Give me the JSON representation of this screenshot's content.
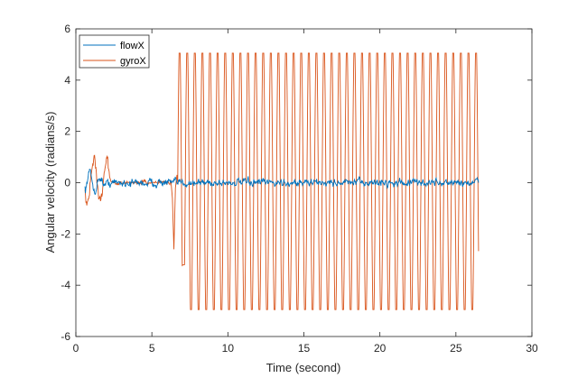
{
  "chart_data": {
    "type": "line",
    "xlabel": "Time (second)",
    "ylabel": "Angular velocity (radians/s)",
    "xlim": [
      0,
      30
    ],
    "ylim": [
      -6,
      6
    ],
    "xticks": [
      0,
      5,
      10,
      15,
      20,
      25,
      30
    ],
    "yticks": [
      -6,
      -4,
      -2,
      0,
      2,
      4,
      6
    ],
    "grid": false,
    "legend_position": "top-left",
    "data_end_time": 26.5,
    "series": [
      {
        "name": "flowX",
        "color": "#0072BD",
        "description_of_shape": "noisy signal around 0",
        "amplitude_initial": 0.4,
        "amplitude_late": 0.3,
        "peak_range": [
          -0.8,
          0.6
        ]
      },
      {
        "name": "gyroX",
        "color": "#D95319",
        "noise_phase_end": 6.2,
        "oscillation_start": 6.7,
        "oscillation_end": 26.5,
        "oscillation_period": 0.5,
        "peak_max": 5.05,
        "peak_min": -4.95,
        "early_dips": [
          -2.6,
          -3.2
        ]
      }
    ]
  }
}
